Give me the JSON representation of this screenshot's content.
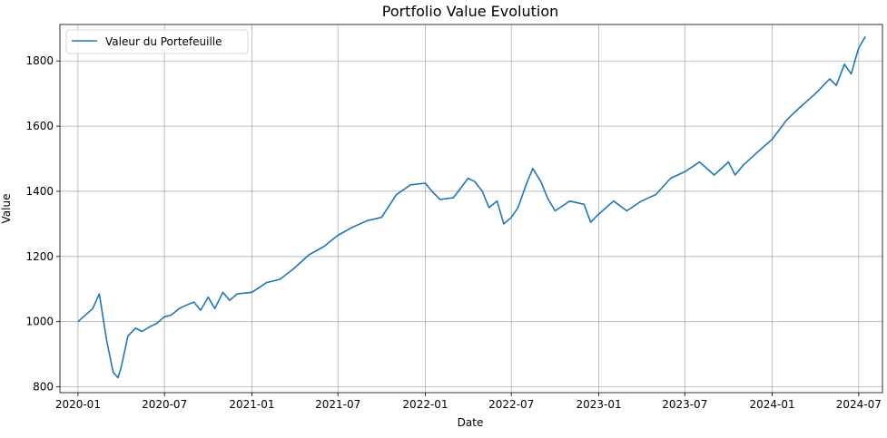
{
  "chart_data": {
    "type": "line",
    "title": "Portfolio Value Evolution",
    "xlabel": "Date",
    "ylabel": "Value",
    "x_range": [
      "2019-11-24",
      "2024-08-20"
    ],
    "ylim": [
      782,
      1912
    ],
    "x_ticks": [
      "2020-01",
      "2020-07",
      "2021-01",
      "2021-07",
      "2022-01",
      "2022-07",
      "2023-01",
      "2023-07",
      "2024-01",
      "2024-07"
    ],
    "y_ticks": [
      800,
      1000,
      1200,
      1400,
      1600,
      1800
    ],
    "grid": true,
    "legend_position": "top-left",
    "series": [
      {
        "name": "Valeur du Portefeuille",
        "color": "#1f77b4",
        "x": [
          "2020-01-01",
          "2020-02-01",
          "2020-02-15",
          "2020-03-01",
          "2020-03-15",
          "2020-03-25",
          "2020-04-01",
          "2020-04-15",
          "2020-05-01",
          "2020-05-15",
          "2020-06-01",
          "2020-06-15",
          "2020-07-01",
          "2020-07-15",
          "2020-08-01",
          "2020-08-15",
          "2020-09-01",
          "2020-09-15",
          "2020-10-01",
          "2020-10-15",
          "2020-11-01",
          "2020-11-15",
          "2020-12-01",
          "2021-01-01",
          "2021-02-01",
          "2021-03-01",
          "2021-04-01",
          "2021-05-01",
          "2021-06-01",
          "2021-07-01",
          "2021-08-01",
          "2021-09-01",
          "2021-10-01",
          "2021-11-01",
          "2021-12-01",
          "2022-01-01",
          "2022-01-15",
          "2022-02-01",
          "2022-03-01",
          "2022-04-01",
          "2022-04-15",
          "2022-05-01",
          "2022-05-15",
          "2022-06-01",
          "2022-06-15",
          "2022-07-01",
          "2022-07-15",
          "2022-08-01",
          "2022-08-15",
          "2022-09-01",
          "2022-09-15",
          "2022-10-01",
          "2022-11-01",
          "2022-12-01",
          "2022-12-15",
          "2023-01-01",
          "2023-02-01",
          "2023-03-01",
          "2023-04-01",
          "2023-05-01",
          "2023-06-01",
          "2023-07-01",
          "2023-08-01",
          "2023-09-01",
          "2023-10-01",
          "2023-10-15",
          "2023-11-01",
          "2023-12-01",
          "2024-01-01",
          "2024-02-01",
          "2024-03-01",
          "2024-04-01",
          "2024-05-01",
          "2024-05-15",
          "2024-06-01",
          "2024-06-15",
          "2024-07-01",
          "2024-07-15"
        ],
        "values": [
          1000,
          1040,
          1085,
          945,
          845,
          828,
          860,
          955,
          980,
          970,
          985,
          995,
          1015,
          1020,
          1040,
          1050,
          1060,
          1035,
          1075,
          1040,
          1090,
          1065,
          1085,
          1090,
          1120,
          1130,
          1165,
          1205,
          1230,
          1265,
          1290,
          1310,
          1320,
          1390,
          1420,
          1425,
          1400,
          1375,
          1380,
          1440,
          1430,
          1400,
          1350,
          1370,
          1300,
          1320,
          1350,
          1420,
          1470,
          1430,
          1380,
          1340,
          1370,
          1360,
          1305,
          1330,
          1370,
          1340,
          1370,
          1390,
          1440,
          1460,
          1490,
          1450,
          1490,
          1450,
          1480,
          1520,
          1560,
          1620,
          1660,
          1700,
          1745,
          1725,
          1790,
          1760,
          1840,
          1875
        ]
      }
    ]
  }
}
